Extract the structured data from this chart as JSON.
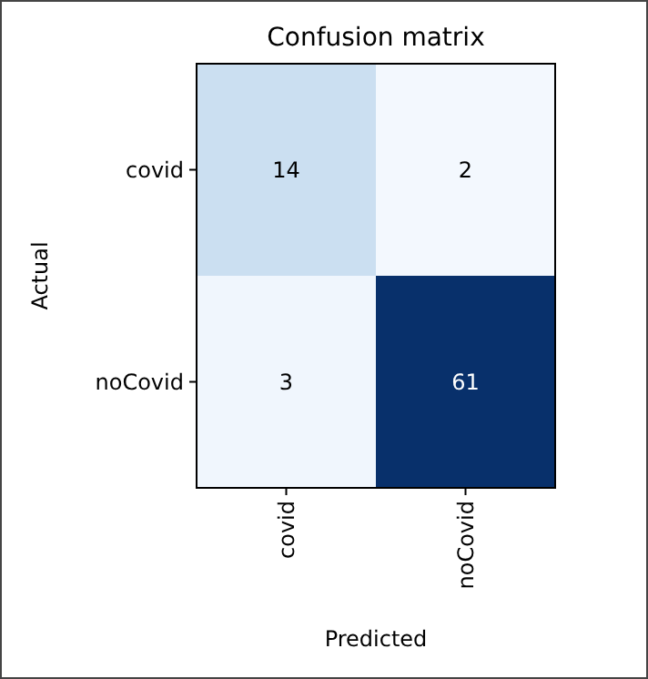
{
  "chart_data": {
    "type": "heatmap",
    "title": "Confusion matrix",
    "xlabel": "Predicted",
    "ylabel": "Actual",
    "categories": [
      "covid",
      "noCovid"
    ],
    "y_categories": [
      "covid",
      "noCovid"
    ],
    "cells": [
      [
        14,
        2
      ],
      [
        3,
        61
      ]
    ],
    "data_labels": true
  }
}
